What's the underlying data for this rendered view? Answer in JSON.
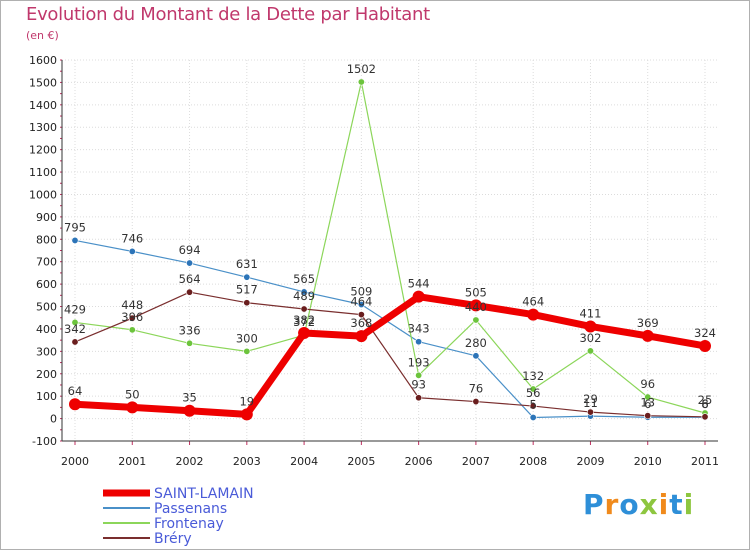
{
  "title": "Evolution du Montant de la Dette par Habitant",
  "subtitle": "(en €)",
  "logo": {
    "letters": [
      {
        "ch": "P",
        "color": "#2e8fd8"
      },
      {
        "ch": "r",
        "color": "#f08a1c"
      },
      {
        "ch": "o",
        "color": "#2e8fd8"
      },
      {
        "ch": "x",
        "color": "#8dc63f"
      },
      {
        "ch": "i",
        "color": "#f08a1c"
      },
      {
        "ch": "t",
        "color": "#2e8fd8"
      },
      {
        "ch": "i",
        "color": "#8dc63f"
      }
    ]
  },
  "chart_data": {
    "type": "line",
    "x": [
      "2000",
      "2001",
      "2002",
      "2003",
      "2004",
      "2005",
      "2006",
      "2007",
      "2008",
      "2009",
      "2010",
      "2011"
    ],
    "ylim": [
      -100,
      1600
    ],
    "yticks": [
      "-100",
      "0",
      "100",
      "200",
      "300",
      "400",
      "500",
      "600",
      "700",
      "800",
      "900",
      "1000",
      "1100",
      "1200",
      "1300",
      "1400",
      "1500",
      "1600"
    ],
    "grid": true,
    "legend_position": "bottom-left",
    "series": [
      {
        "name": "Passenans",
        "color": "#4a90c8",
        "marker": "#2c74b8",
        "width": 1.2,
        "values": [
          795,
          746,
          694,
          631,
          565,
          509,
          343,
          280,
          5,
          11,
          6,
          6
        ],
        "labels": [
          "795",
          "746",
          "694",
          "631",
          "565",
          "509",
          "343",
          "280",
          "5",
          "11",
          "6",
          "6"
        ]
      },
      {
        "name": "Frontenay",
        "color": "#8cd65a",
        "marker": "#6cc43c",
        "width": 1.2,
        "values": [
          429,
          396,
          336,
          300,
          372,
          1502,
          193,
          440,
          132,
          302,
          96,
          25
        ],
        "labels": [
          "429",
          "396",
          "336",
          "300",
          "372",
          "1502",
          "193",
          "440",
          "132",
          "302",
          "96",
          "25"
        ]
      },
      {
        "name": "Bréry",
        "color": "#7a2e2e",
        "marker": "#6a1e1e",
        "width": 1.2,
        "values": [
          342,
          448,
          564,
          517,
          489,
          464,
          93,
          76,
          56,
          29,
          13,
          8
        ],
        "labels": [
          "342",
          "448",
          "564",
          "517",
          "489",
          "464",
          "93",
          "76",
          "56",
          "29",
          "13",
          "8"
        ]
      },
      {
        "name": "SAINT-LAMAIN",
        "color": "#ee0000",
        "marker": "#ee0000",
        "width": 7,
        "values": [
          64,
          50,
          35,
          19,
          382,
          368,
          544,
          505,
          464,
          411,
          369,
          324
        ],
        "labels": [
          "64",
          "50",
          "35",
          "19",
          "382",
          "368",
          "544",
          "505",
          "464",
          "411",
          "369",
          "324"
        ]
      }
    ],
    "legend_order": [
      "SAINT-LAMAIN",
      "Passenans",
      "Frontenay",
      "Bréry"
    ],
    "legend_text_color": "#4a5bd8"
  }
}
